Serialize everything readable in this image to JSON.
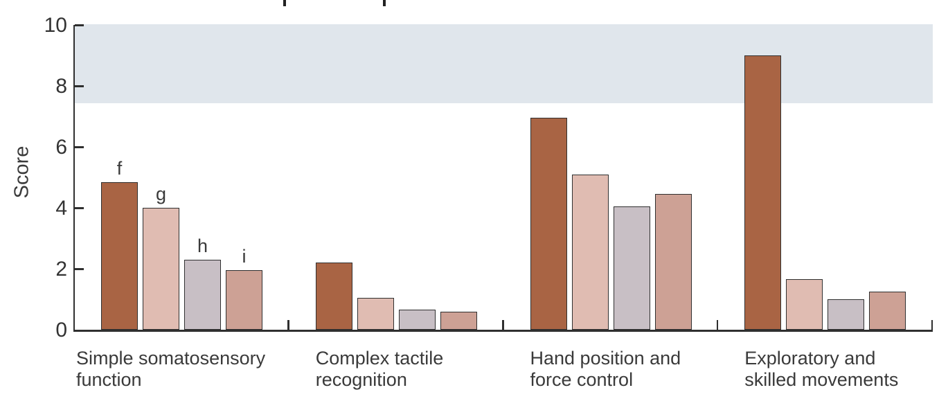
{
  "figure": {
    "background_color": "#ffffff",
    "axis_color": "#2f2f2f",
    "text_color": "#3a3a3a",
    "cropped_top_text_remnants": 2
  },
  "chart_data": {
    "type": "bar",
    "title": "",
    "ylabel": "Score",
    "xlabel": "",
    "ylim": [
      0,
      10
    ],
    "yticks": [
      0,
      2,
      4,
      6,
      8,
      10
    ],
    "grid": "off",
    "legend": "none",
    "reference_band": {
      "name": "shaded-normal-range-band",
      "from": 7.4,
      "to": 10,
      "color": "#e0e6ec"
    },
    "categories": [
      "Simple somatosensory\nfunction",
      "Complex tactile\nrecognition",
      "Hand position and\nforce control",
      "Exploratory and\nskilled movements"
    ],
    "series": [
      {
        "name": "f",
        "color": "#a96444",
        "values": [
          4.85,
          2.2,
          6.95,
          9.0
        ]
      },
      {
        "name": "g",
        "color": "#e0bcb2",
        "values": [
          4.0,
          1.05,
          5.1,
          1.65
        ]
      },
      {
        "name": "h",
        "color": "#c8bfc5",
        "values": [
          2.3,
          0.65,
          4.05,
          1.0
        ]
      },
      {
        "name": "i",
        "color": "#cda195",
        "values": [
          1.95,
          0.6,
          4.45,
          1.25
        ]
      }
    ],
    "bar_letter_labels": [
      "f",
      "g",
      "h",
      "i"
    ],
    "bar_letter_labels_shown_on_group": 0
  }
}
